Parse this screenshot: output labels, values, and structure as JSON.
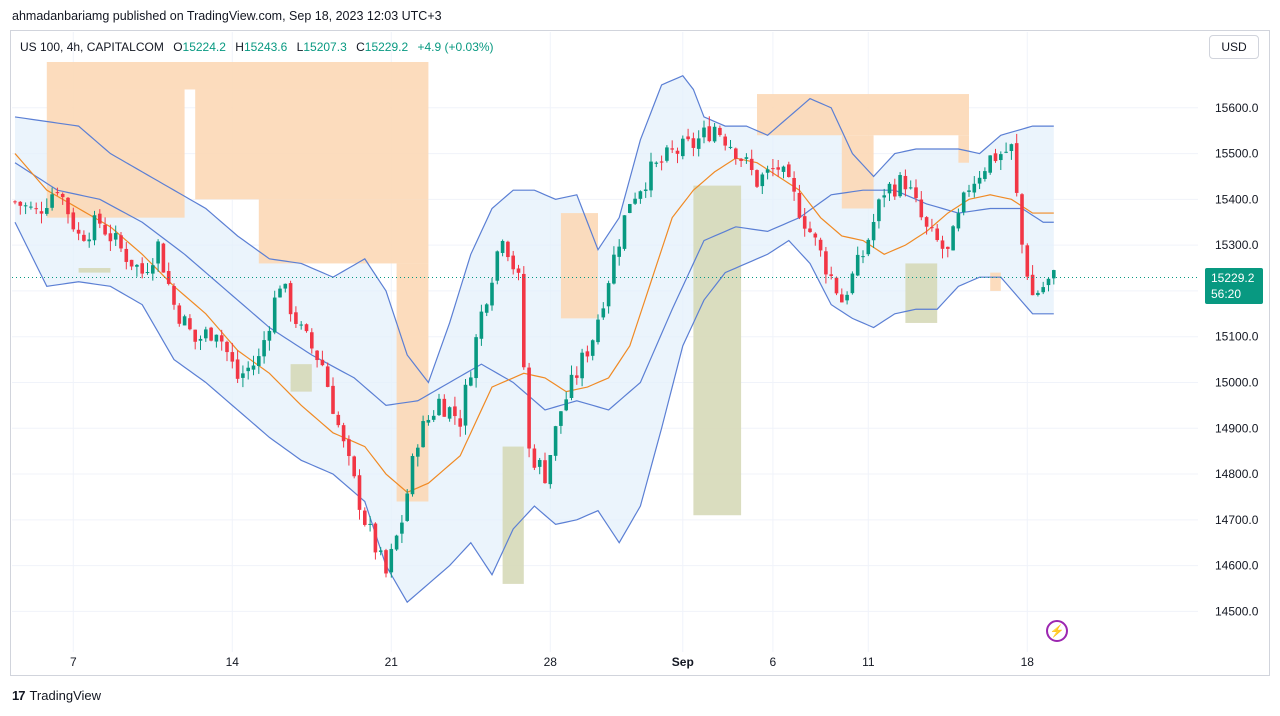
{
  "header": {
    "published_line": "ahmadanbariamg published on TradingView.com, Sep 18, 2023 12:03 UTC+3"
  },
  "legend": {
    "symbol": "US 100, 4h, CAPITALCOM",
    "open_label": "O",
    "open": "15224.2",
    "high_label": "H",
    "high": "15243.6",
    "low_label": "L",
    "low": "15207.3",
    "close_label": "C",
    "close": "15229.2",
    "change": "+4.9 (+0.03%)"
  },
  "currency_button": "USD",
  "price_tag": {
    "price": "15229.2",
    "countdown": "56:20"
  },
  "footer": {
    "brand_mark": "17",
    "brand": "TradingView"
  },
  "icons": {
    "lightning": "lightning-icon",
    "logo": "tradingview-logo-icon"
  },
  "colors": {
    "up": "#089981",
    "down": "#f23645",
    "band": "#5b7fd4",
    "ma": "#f08a24",
    "zone_orange": "#fcd8b6",
    "zone_olive": "#d6d9b8",
    "band_fill": "#e3f0fb"
  },
  "chart_data": {
    "type": "candlestick",
    "ylim": [
      14420,
      15700
    ],
    "y_ticks": [
      "15600.0",
      "15500.0",
      "15400.0",
      "15300.0",
      "15200.0",
      "15100.0",
      "15000.0",
      "14900.0",
      "14800.0",
      "14700.0",
      "14600.0",
      "14500.0"
    ],
    "x_ticks": [
      {
        "label": "7",
        "idx": 11
      },
      {
        "label": "14",
        "idx": 41
      },
      {
        "label": "21",
        "idx": 71
      },
      {
        "label": "28",
        "idx": 101
      },
      {
        "label": "Sep",
        "idx": 126,
        "bold": true
      },
      {
        "label": "6",
        "idx": 143
      },
      {
        "label": "11",
        "idx": 161
      },
      {
        "label": "18",
        "idx": 191
      }
    ],
    "bars": 200,
    "close_anchors": [
      [
        0,
        15395
      ],
      [
        4,
        15370
      ],
      [
        8,
        15430
      ],
      [
        12,
        15320
      ],
      [
        16,
        15350
      ],
      [
        20,
        15290
      ],
      [
        24,
        15240
      ],
      [
        27,
        15300
      ],
      [
        30,
        15170
      ],
      [
        34,
        15090
      ],
      [
        38,
        15120
      ],
      [
        42,
        15010
      ],
      [
        46,
        15050
      ],
      [
        50,
        15220
      ],
      [
        54,
        15110
      ],
      [
        58,
        15040
      ],
      [
        62,
        14860
      ],
      [
        66,
        14700
      ],
      [
        70,
        14580
      ],
      [
        73,
        14700
      ],
      [
        76,
        14880
      ],
      [
        80,
        14960
      ],
      [
        84,
        14920
      ],
      [
        88,
        15150
      ],
      [
        92,
        15330
      ],
      [
        95,
        15220
      ],
      [
        97,
        14850
      ],
      [
        100,
        14800
      ],
      [
        103,
        14940
      ],
      [
        106,
        15020
      ],
      [
        109,
        15100
      ],
      [
        112,
        15230
      ],
      [
        116,
        15400
      ],
      [
        120,
        15460
      ],
      [
        124,
        15500
      ],
      [
        128,
        15520
      ],
      [
        132,
        15560
      ],
      [
        136,
        15510
      ],
      [
        140,
        15440
      ],
      [
        144,
        15470
      ],
      [
        148,
        15380
      ],
      [
        152,
        15280
      ],
      [
        156,
        15180
      ],
      [
        160,
        15280
      ],
      [
        164,
        15420
      ],
      [
        168,
        15440
      ],
      [
        172,
        15330
      ],
      [
        176,
        15280
      ],
      [
        180,
        15430
      ],
      [
        184,
        15490
      ],
      [
        188,
        15510
      ],
      [
        190,
        15300
      ],
      [
        192,
        15190
      ],
      [
        196,
        15229
      ]
    ],
    "upper_band_anchors": [
      [
        0,
        15580
      ],
      [
        6,
        15570
      ],
      [
        12,
        15560
      ],
      [
        18,
        15500
      ],
      [
        24,
        15460
      ],
      [
        30,
        15420
      ],
      [
        36,
        15380
      ],
      [
        42,
        15320
      ],
      [
        48,
        15270
      ],
      [
        54,
        15260
      ],
      [
        60,
        15230
      ],
      [
        66,
        15270
      ],
      [
        70,
        15200
      ],
      [
        74,
        15060
      ],
      [
        78,
        15000
      ],
      [
        82,
        15130
      ],
      [
        86,
        15280
      ],
      [
        90,
        15380
      ],
      [
        94,
        15420
      ],
      [
        98,
        15420
      ],
      [
        102,
        15400
      ],
      [
        106,
        15410
      ],
      [
        110,
        15290
      ],
      [
        114,
        15360
      ],
      [
        118,
        15530
      ],
      [
        122,
        15650
      ],
      [
        126,
        15670
      ],
      [
        128,
        15640
      ],
      [
        130,
        15580
      ],
      [
        134,
        15560
      ],
      [
        138,
        15560
      ],
      [
        142,
        15540
      ],
      [
        146,
        15580
      ],
      [
        150,
        15620
      ],
      [
        154,
        15600
      ],
      [
        158,
        15500
      ],
      [
        162,
        15450
      ],
      [
        166,
        15500
      ],
      [
        170,
        15510
      ],
      [
        174,
        15510
      ],
      [
        178,
        15510
      ],
      [
        182,
        15500
      ],
      [
        186,
        15540
      ],
      [
        192,
        15560
      ]
    ],
    "lower_band_anchors": [
      [
        0,
        15350
      ],
      [
        6,
        15210
      ],
      [
        12,
        15220
      ],
      [
        18,
        15210
      ],
      [
        24,
        15170
      ],
      [
        30,
        15050
      ],
      [
        36,
        15000
      ],
      [
        42,
        14940
      ],
      [
        48,
        14880
      ],
      [
        54,
        14830
      ],
      [
        60,
        14800
      ],
      [
        66,
        14740
      ],
      [
        70,
        14600
      ],
      [
        74,
        14520
      ],
      [
        78,
        14560
      ],
      [
        82,
        14600
      ],
      [
        86,
        14650
      ],
      [
        90,
        14580
      ],
      [
        94,
        14680
      ],
      [
        98,
        14730
      ],
      [
        102,
        14690
      ],
      [
        106,
        14700
      ],
      [
        110,
        14720
      ],
      [
        114,
        14650
      ],
      [
        118,
        14730
      ],
      [
        122,
        14900
      ],
      [
        126,
        15080
      ],
      [
        130,
        15180
      ],
      [
        134,
        15240
      ],
      [
        138,
        15260
      ],
      [
        142,
        15280
      ],
      [
        146,
        15310
      ],
      [
        150,
        15260
      ],
      [
        154,
        15170
      ],
      [
        158,
        15140
      ],
      [
        162,
        15120
      ],
      [
        166,
        15150
      ],
      [
        170,
        15160
      ],
      [
        174,
        15160
      ],
      [
        178,
        15210
      ],
      [
        182,
        15230
      ],
      [
        186,
        15230
      ],
      [
        192,
        15150
      ]
    ],
    "middle_band_anchors": [
      [
        0,
        15480
      ],
      [
        8,
        15420
      ],
      [
        16,
        15400
      ],
      [
        24,
        15350
      ],
      [
        32,
        15280
      ],
      [
        40,
        15200
      ],
      [
        48,
        15120
      ],
      [
        56,
        15060
      ],
      [
        64,
        15010
      ],
      [
        70,
        14950
      ],
      [
        76,
        14960
      ],
      [
        82,
        15000
      ],
      [
        88,
        15040
      ],
      [
        94,
        15000
      ],
      [
        100,
        14940
      ],
      [
        106,
        14960
      ],
      [
        112,
        14940
      ],
      [
        118,
        15000
      ],
      [
        124,
        15160
      ],
      [
        130,
        15310
      ],
      [
        136,
        15340
      ],
      [
        142,
        15330
      ],
      [
        148,
        15360
      ],
      [
        154,
        15410
      ],
      [
        160,
        15420
      ],
      [
        166,
        15420
      ],
      [
        172,
        15390
      ],
      [
        178,
        15370
      ],
      [
        184,
        15380
      ],
      [
        190,
        15380
      ],
      [
        194,
        15350
      ]
    ],
    "ma_anchors": [
      [
        0,
        15500
      ],
      [
        6,
        15420
      ],
      [
        12,
        15380
      ],
      [
        18,
        15340
      ],
      [
        24,
        15280
      ],
      [
        30,
        15210
      ],
      [
        36,
        15150
      ],
      [
        42,
        15070
      ],
      [
        48,
        15020
      ],
      [
        54,
        14950
      ],
      [
        60,
        14890
      ],
      [
        66,
        14860
      ],
      [
        70,
        14800
      ],
      [
        74,
        14760
      ],
      [
        78,
        14780
      ],
      [
        84,
        14840
      ],
      [
        90,
        14990
      ],
      [
        96,
        15020
      ],
      [
        100,
        15010
      ],
      [
        104,
        14980
      ],
      [
        108,
        14990
      ],
      [
        112,
        15010
      ],
      [
        116,
        15080
      ],
      [
        120,
        15220
      ],
      [
        124,
        15360
      ],
      [
        128,
        15420
      ],
      [
        132,
        15460
      ],
      [
        136,
        15490
      ],
      [
        140,
        15480
      ],
      [
        144,
        15450
      ],
      [
        148,
        15420
      ],
      [
        152,
        15360
      ],
      [
        156,
        15320
      ],
      [
        160,
        15310
      ],
      [
        164,
        15280
      ],
      [
        168,
        15300
      ],
      [
        172,
        15330
      ],
      [
        176,
        15370
      ],
      [
        180,
        15400
      ],
      [
        184,
        15410
      ],
      [
        188,
        15400
      ],
      [
        192,
        15370
      ]
    ],
    "zones": [
      {
        "color": "orange",
        "x0": 6,
        "x1": 78,
        "top": 15700,
        "bottom": 15640
      },
      {
        "color": "orange",
        "x0": 6,
        "x1": 32,
        "top": 15640,
        "bottom": 15360
      },
      {
        "color": "orange",
        "x0": 34,
        "x1": 78,
        "top": 15640,
        "bottom": 15400
      },
      {
        "color": "orange",
        "x0": 46,
        "x1": 78,
        "top": 15400,
        "bottom": 15260
      },
      {
        "color": "orange",
        "x0": 72,
        "x1": 78,
        "top": 15260,
        "bottom": 14740
      },
      {
        "color": "orange",
        "x0": 103,
        "x1": 110,
        "top": 15370,
        "bottom": 15140
      },
      {
        "color": "orange",
        "x0": 140,
        "x1": 180,
        "top": 15630,
        "bottom": 15540
      },
      {
        "color": "orange",
        "x0": 156,
        "x1": 162,
        "top": 15540,
        "bottom": 15380
      },
      {
        "color": "orange",
        "x0": 178,
        "x1": 180,
        "top": 15540,
        "bottom": 15480
      },
      {
        "color": "orange",
        "x0": 184,
        "x1": 186,
        "top": 15240,
        "bottom": 15200
      },
      {
        "color": "olive",
        "x0": 12,
        "x1": 18,
        "top": 15250,
        "bottom": 15240
      },
      {
        "color": "olive",
        "x0": 52,
        "x1": 56,
        "top": 15040,
        "bottom": 14980
      },
      {
        "color": "olive",
        "x0": 92,
        "x1": 96,
        "top": 14860,
        "bottom": 14560
      },
      {
        "color": "olive",
        "x0": 128,
        "x1": 137,
        "top": 15430,
        "bottom": 14710
      },
      {
        "color": "olive",
        "x0": 168,
        "x1": 174,
        "top": 15260,
        "bottom": 15130
      }
    ]
  }
}
